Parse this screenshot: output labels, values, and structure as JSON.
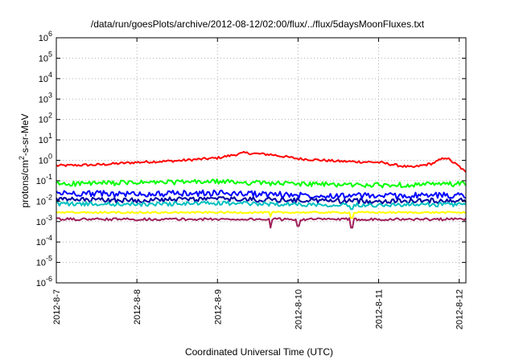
{
  "chart_data": {
    "type": "line",
    "title": "/data/run/goesPlots/archive/2012-08-12/02:00/flux/../flux/5daysMoonFluxes.txt",
    "xlabel": "Coordinated Universal Time (UTC)",
    "ylabel": "protons/cm²-s-sr-MeV",
    "ylabel_prefix": "protons/cm",
    "ylabel_sup": "2",
    "ylabel_suffix": "-s-sr-MeV",
    "yscale": "log",
    "ylim": [
      1e-06,
      1000000.0
    ],
    "xlim": [
      "2012-08-07",
      "2012-08-12 02:00"
    ],
    "grid": true,
    "y_ticks": [
      {
        "value": 1e-06,
        "base": "10",
        "exp": "-6"
      },
      {
        "value": 1e-05,
        "base": "10",
        "exp": "-5"
      },
      {
        "value": 0.0001,
        "base": "10",
        "exp": "-4"
      },
      {
        "value": 0.001,
        "base": "10",
        "exp": "-3"
      },
      {
        "value": 0.01,
        "base": "10",
        "exp": "-2"
      },
      {
        "value": 0.1,
        "base": "10",
        "exp": "-1"
      },
      {
        "value": 1,
        "base": "10",
        "exp": "0"
      },
      {
        "value": 10.0,
        "base": "10",
        "exp": "1"
      },
      {
        "value": 100.0,
        "base": "10",
        "exp": "2"
      },
      {
        "value": 1000.0,
        "base": "10",
        "exp": "3"
      },
      {
        "value": 10000.0,
        "base": "10",
        "exp": "4"
      },
      {
        "value": 100000.0,
        "base": "10",
        "exp": "5"
      },
      {
        "value": 1000000.0,
        "base": "10",
        "exp": "6"
      }
    ],
    "x_ticks": [
      {
        "date": "2012-08-07",
        "label": "2012-8-7"
      },
      {
        "date": "2012-08-08",
        "label": "2012-8-8"
      },
      {
        "date": "2012-08-09",
        "label": "2012-8-9"
      },
      {
        "date": "2012-08-10",
        "label": "2012-8-10"
      },
      {
        "date": "2012-08-11",
        "label": "2012-8-11"
      },
      {
        "date": "2012-08-12",
        "label": "2012-8-12"
      }
    ],
    "series": [
      {
        "color": "#ff0000",
        "base_log": -0.22,
        "noise_log": 0.06,
        "spikes": [],
        "trend": [
          [
            "2012-08-07 00:00",
            0.55
          ],
          [
            "2012-08-07 12:00",
            0.6
          ],
          [
            "2012-08-08 00:00",
            0.8
          ],
          [
            "2012-08-08 12:00",
            0.95
          ],
          [
            "2012-08-09 00:00",
            1.3
          ],
          [
            "2012-08-09 08:00",
            2.3
          ],
          [
            "2012-08-09 16:00",
            1.9
          ],
          [
            "2012-08-10 00:00",
            1.2
          ],
          [
            "2012-08-10 12:00",
            0.9
          ],
          [
            "2012-08-11 00:00",
            0.8
          ],
          [
            "2012-08-11 06:00",
            0.55
          ],
          [
            "2012-08-11 10:00",
            0.45
          ],
          [
            "2012-08-11 16:00",
            0.7
          ],
          [
            "2012-08-11 20:00",
            1.4
          ],
          [
            "2012-08-12 00:00",
            0.5
          ],
          [
            "2012-08-12 02:00",
            0.25
          ]
        ]
      },
      {
        "color": "#00ff00",
        "noise_log": 0.12,
        "spikes": [],
        "trend": [
          [
            "2012-08-07 00:00",
            0.07
          ],
          [
            "2012-08-08 00:00",
            0.08
          ],
          [
            "2012-08-09 00:00",
            0.09
          ],
          [
            "2012-08-10 00:00",
            0.07
          ],
          [
            "2012-08-11 00:00",
            0.06
          ],
          [
            "2012-08-12 02:00",
            0.07
          ]
        ]
      },
      {
        "color": "#0000ff",
        "noise_log": 0.15,
        "spikes": [],
        "trend": [
          [
            "2012-08-07 00:00",
            0.025
          ],
          [
            "2012-08-08 00:00",
            0.022
          ],
          [
            "2012-08-09 00:00",
            0.025
          ],
          [
            "2012-08-10 00:00",
            0.02
          ],
          [
            "2012-08-11 00:00",
            0.018
          ],
          [
            "2012-08-12 02:00",
            0.02
          ]
        ]
      },
      {
        "color": "#0000a0",
        "noise_log": 0.12,
        "spikes": [],
        "trend": [
          [
            "2012-08-07 00:00",
            0.012
          ],
          [
            "2012-08-08 00:00",
            0.011
          ],
          [
            "2012-08-09 00:00",
            0.013
          ],
          [
            "2012-08-10 00:00",
            0.011
          ],
          [
            "2012-08-11 00:00",
            0.01
          ],
          [
            "2012-08-12 02:00",
            0.011
          ]
        ]
      },
      {
        "color": "#00c0c0",
        "noise_log": 0.1,
        "spikes": [
          [
            "2012-08-10 16:00",
            0.004
          ]
        ],
        "trend": [
          [
            "2012-08-07 00:00",
            0.0075
          ],
          [
            "2012-08-08 00:00",
            0.007
          ],
          [
            "2012-08-09 00:00",
            0.008
          ],
          [
            "2012-08-10 00:00",
            0.007
          ],
          [
            "2012-08-11 00:00",
            0.0065
          ],
          [
            "2012-08-12 02:00",
            0.007
          ]
        ]
      },
      {
        "color": "#ffff00",
        "noise_log": 0.04,
        "spikes": [
          [
            "2012-08-09 16:00",
            0.0018
          ],
          [
            "2012-08-10 16:00",
            0.0015
          ]
        ],
        "trend": [
          [
            "2012-08-07 00:00",
            0.0028
          ],
          [
            "2012-08-12 02:00",
            0.0028
          ]
        ]
      },
      {
        "color": "#a0205a",
        "noise_log": 0.06,
        "spikes": [
          [
            "2012-08-09 16:00",
            0.0005
          ],
          [
            "2012-08-10 00:00",
            0.0006
          ],
          [
            "2012-08-10 16:00",
            0.0005
          ]
        ],
        "trend": [
          [
            "2012-08-07 00:00",
            0.0013
          ],
          [
            "2012-08-12 02:00",
            0.0013
          ]
        ]
      }
    ]
  }
}
